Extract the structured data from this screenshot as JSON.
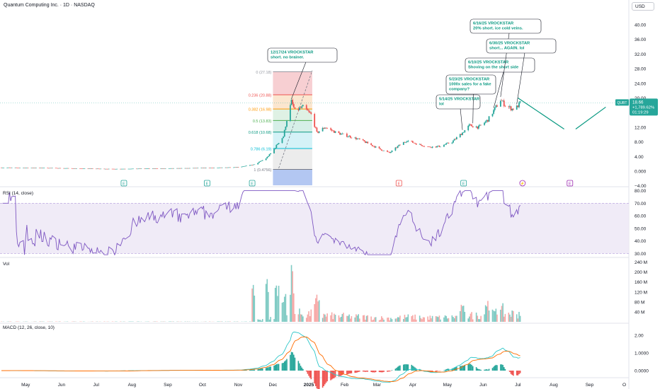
{
  "header": {
    "title": "Quantum Computing Inc. · 1D · NASDAQ",
    "currency": "USD"
  },
  "panes": {
    "rsi_label": "RSI (14, close)",
    "vol_label": "Vol",
    "macd_label": "MACD (12, 26, close, 10)"
  },
  "price_badge": {
    "ticker": "QUBT",
    "price": "18.66",
    "change": "+1,789.62%",
    "countdown": "01:19:29"
  },
  "colors": {
    "up": "#26a69a",
    "down": "#ef5350",
    "rsi": "#7e57c2",
    "annotation": "#089981",
    "macd_line": "#2ec7c9",
    "signal_line": "#ff6d00",
    "projection": "#089981"
  },
  "events": {
    "earnings_label": "E",
    "dividend_label": "E",
    "split_icon": "split-icon"
  },
  "chart_data": [
    {
      "type": "candlestick",
      "pane": "price",
      "x_labels": [
        "May",
        "Jun",
        "Jul",
        "Aug",
        "Sep",
        "Oct",
        "Nov",
        "Dec",
        "2025",
        "Feb",
        "Mar",
        "Apr",
        "May",
        "Jun",
        "Jul",
        "Aug",
        "Sep",
        "O"
      ],
      "y_ticks": [
        "−4.00",
        "0.000",
        "4.00",
        "8.00",
        "12.00",
        "16.00",
        "20.00",
        "24.00",
        "28.00",
        "32.00",
        "36.00",
        "40.00"
      ],
      "ylim": [
        -4,
        40
      ],
      "price_path": [
        [
          "2024-04-10",
          0.98
        ],
        [
          "2024-05-15",
          0.9
        ],
        [
          "2024-06-15",
          0.75
        ],
        [
          "2024-07-15",
          0.6
        ],
        [
          "2024-08-15",
          0.7
        ],
        [
          "2024-09-15",
          0.8
        ],
        [
          "2024-10-15",
          0.95
        ],
        [
          "2024-11-01",
          1.1
        ],
        [
          "2024-11-15",
          1.8
        ],
        [
          "2024-11-25",
          3.5
        ],
        [
          "2024-12-01",
          5.5
        ],
        [
          "2024-12-05",
          7.5
        ],
        [
          "2024-12-10",
          9.5
        ],
        [
          "2024-12-13",
          14.0
        ],
        [
          "2024-12-17",
          19.0
        ],
        [
          "2024-12-20",
          16.5
        ],
        [
          "2024-12-27",
          17.5
        ],
        [
          "2025-01-03",
          15.5
        ],
        [
          "2025-01-08",
          10.5
        ],
        [
          "2025-01-15",
          12.0
        ],
        [
          "2025-01-25",
          10.5
        ],
        [
          "2025-02-05",
          9.5
        ],
        [
          "2025-02-15",
          8.5
        ],
        [
          "2025-02-25",
          7.0
        ],
        [
          "2025-03-05",
          5.8
        ],
        [
          "2025-03-12",
          5.0
        ],
        [
          "2025-03-20",
          7.0
        ],
        [
          "2025-03-27",
          8.4
        ],
        [
          "2025-04-05",
          7.4
        ],
        [
          "2025-04-15",
          6.6
        ],
        [
          "2025-04-25",
          6.8
        ],
        [
          "2025-05-05",
          8.0
        ],
        [
          "2025-05-14",
          10.5
        ],
        [
          "2025-05-20",
          12.5
        ],
        [
          "2025-05-28",
          12.0
        ],
        [
          "2025-06-05",
          14.0
        ],
        [
          "2025-06-10",
          16.5
        ],
        [
          "2025-06-16",
          19.5
        ],
        [
          "2025-06-20",
          18.0
        ],
        [
          "2025-06-26",
          17.0
        ],
        [
          "2025-06-30",
          17.5
        ],
        [
          "2025-07-03",
          18.66
        ]
      ],
      "volume_spikes": [
        [
          "2024-11-15",
          150
        ],
        [
          "2024-11-25",
          230
        ],
        [
          "2024-12-05",
          200
        ],
        [
          "2024-12-10",
          150
        ],
        [
          "2024-12-17",
          240
        ],
        [
          "2025-01-08",
          120
        ],
        [
          "2025-05-14",
          70
        ],
        [
          "2025-06-05",
          100
        ],
        [
          "2025-06-16",
          75
        ]
      ],
      "fib_levels": [
        {
          "ratio": "0",
          "price": "27.18"
        },
        {
          "ratio": "0.236",
          "price": "20.88"
        },
        {
          "ratio": "0.382",
          "price": "16.98"
        },
        {
          "ratio": "0.5",
          "price": "13.83"
        },
        {
          "ratio": "0.618",
          "price": "10.68"
        },
        {
          "ratio": "0.786",
          "price": "6.19"
        },
        {
          "ratio": "1",
          "price": "0.4756"
        }
      ],
      "fib_prices": [
        27.18,
        20.88,
        16.98,
        13.83,
        10.68,
        6.19,
        0.4756
      ],
      "annotations": [
        {
          "date": "2024-12-17",
          "lines": [
            "12/17/24 VROCKSTAR",
            "short. no brainer."
          ]
        },
        {
          "date": "2025-05-14",
          "lines": [
            "5/14/25 VROCKSTAR",
            "lol"
          ]
        },
        {
          "date": "2025-05-23",
          "lines": [
            "5/23/25 VROCKSTAR",
            "1000x sales for a fake",
            "company?"
          ]
        },
        {
          "date": "2025-06-10",
          "lines": [
            "6/10/25 VROCKSTAR",
            "Shoving on the short side"
          ]
        },
        {
          "date": "2025-06-16",
          "lines": [
            "6/16/25 VROCKSTAR",
            "20% short. ice cold veins."
          ]
        },
        {
          "date": "2025-06-30",
          "lines": [
            "6/30/25 VROCKSTAR",
            "short... AGAIN. lol"
          ]
        }
      ],
      "projection": [
        [
          "2025-07-01",
          20.0
        ],
        [
          "2025-08-10",
          11.5
        ],
        [
          "2025-08-20",
          11.5
        ],
        [
          "2025-09-15",
          17.5
        ]
      ]
    },
    {
      "type": "line",
      "pane": "rsi",
      "y_ticks": [
        "30.00",
        "40.00",
        "50.00",
        "60.00",
        "70.00",
        "80.00"
      ],
      "ylim": [
        30,
        80
      ],
      "bands": [
        30,
        70
      ]
    },
    {
      "type": "bar",
      "pane": "volume",
      "y_ticks": [
        "40 M",
        "80 M",
        "120 M",
        "160 M",
        "200 M",
        "240 M"
      ],
      "ylim": [
        0,
        240
      ]
    },
    {
      "type": "line",
      "pane": "macd",
      "y_ticks": [
        "0.0000",
        "1.0000",
        "2.00"
      ],
      "ylim": [
        -0.3,
        2.8
      ]
    }
  ]
}
